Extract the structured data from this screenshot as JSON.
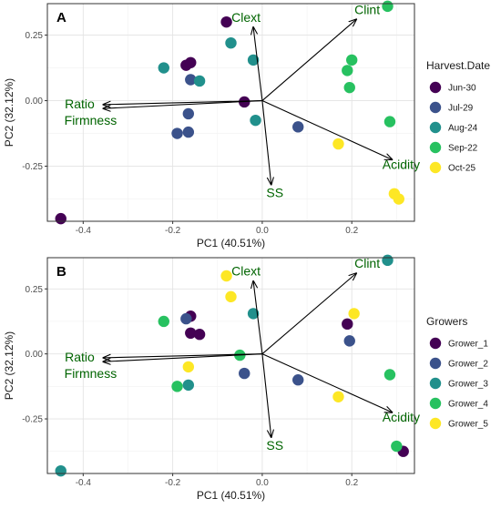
{
  "chart_data": [
    {
      "type": "scatter",
      "panel_label": "A",
      "xlabel": "PC1 (40.51%)",
      "ylabel": "PC2 (32.12%)",
      "xlim": [
        -0.48,
        0.34
      ],
      "ylim": [
        -0.46,
        0.37
      ],
      "x_ticks": [
        -0.4,
        -0.2,
        0.0,
        0.2
      ],
      "y_ticks": [
        0.25,
        0.0,
        -0.25
      ],
      "x_tick_labels": [
        "-0.4",
        "-0.2",
        "0.0",
        "0.2"
      ],
      "y_tick_labels": [
        "0.25",
        "0.00",
        "-0.25"
      ],
      "grid": true,
      "legend": {
        "title": "Harvest.Date",
        "position": "right"
      },
      "loadings": [
        {
          "label": "Clint",
          "x": 0.21,
          "y": 0.31
        },
        {
          "label": "Clext",
          "x": -0.02,
          "y": 0.28
        },
        {
          "label": "Ratio",
          "x": -0.355,
          "y": -0.015
        },
        {
          "label": "Firmness",
          "x": -0.355,
          "y": -0.03
        },
        {
          "label": "SS",
          "x": 0.02,
          "y": -0.32
        },
        {
          "label": "Acidity",
          "x": 0.29,
          "y": -0.225
        }
      ],
      "series": [
        {
          "name": "Jun-30",
          "color": "#440154",
          "points": [
            [
              -0.45,
              -0.45
            ],
            [
              -0.17,
              0.135
            ],
            [
              -0.16,
              0.145
            ],
            [
              -0.04,
              -0.005
            ],
            [
              -0.08,
              0.3
            ]
          ]
        },
        {
          "name": "Jul-29",
          "color": "#3B528B",
          "points": [
            [
              -0.16,
              0.08
            ],
            [
              -0.165,
              -0.05
            ],
            [
              -0.19,
              -0.125
            ],
            [
              -0.165,
              -0.12
            ],
            [
              0.08,
              -0.1
            ]
          ]
        },
        {
          "name": "Aug-24",
          "color": "#21908C",
          "points": [
            [
              -0.22,
              0.125
            ],
            [
              -0.14,
              0.075
            ],
            [
              -0.07,
              0.22
            ],
            [
              -0.02,
              0.155
            ],
            [
              -0.015,
              -0.075
            ]
          ]
        },
        {
          "name": "Sep-22",
          "color": "#27C160",
          "points": [
            [
              0.28,
              0.36
            ],
            [
              0.2,
              0.155
            ],
            [
              0.19,
              0.115
            ],
            [
              0.195,
              0.05
            ],
            [
              0.285,
              -0.08
            ]
          ]
        },
        {
          "name": "Oct-25",
          "color": "#FDE725",
          "points": [
            [
              0.17,
              -0.165
            ],
            [
              0.295,
              -0.355
            ],
            [
              0.305,
              -0.375
            ]
          ]
        }
      ]
    },
    {
      "type": "scatter",
      "panel_label": "B",
      "xlabel": "PC1 (40.51%)",
      "ylabel": "PC2 (32.12%)",
      "xlim": [
        -0.48,
        0.34
      ],
      "ylim": [
        -0.46,
        0.37
      ],
      "x_ticks": [
        -0.4,
        -0.2,
        0.0,
        0.2
      ],
      "y_ticks": [
        0.25,
        0.0,
        -0.25
      ],
      "x_tick_labels": [
        "-0.4",
        "-0.2",
        "0.0",
        "0.2"
      ],
      "y_tick_labels": [
        "0.25",
        "0.00",
        "-0.25"
      ],
      "grid": true,
      "legend": {
        "title": "Growers",
        "position": "right"
      },
      "loadings": [
        {
          "label": "Clint",
          "x": 0.21,
          "y": 0.31
        },
        {
          "label": "Clext",
          "x": -0.02,
          "y": 0.28
        },
        {
          "label": "Ratio",
          "x": -0.355,
          "y": -0.015
        },
        {
          "label": "Firmness",
          "x": -0.355,
          "y": -0.03
        },
        {
          "label": "SS",
          "x": 0.02,
          "y": -0.32
        },
        {
          "label": "Acidity",
          "x": 0.29,
          "y": -0.225
        }
      ],
      "series": [
        {
          "name": "Grower_1",
          "color": "#440154",
          "points": [
            [
              -0.16,
              0.145
            ],
            [
              -0.16,
              0.08
            ],
            [
              -0.14,
              0.075
            ],
            [
              0.19,
              0.115
            ],
            [
              0.315,
              -0.375
            ]
          ]
        },
        {
          "name": "Grower_2",
          "color": "#3B528B",
          "points": [
            [
              -0.17,
              0.135
            ],
            [
              -0.04,
              -0.075
            ],
            [
              0.08,
              -0.1
            ],
            [
              0.195,
              0.05
            ]
          ]
        },
        {
          "name": "Grower_3",
          "color": "#21908C",
          "points": [
            [
              -0.45,
              -0.45
            ],
            [
              -0.02,
              0.155
            ],
            [
              -0.165,
              -0.12
            ],
            [
              0.28,
              0.36
            ]
          ]
        },
        {
          "name": "Grower_4",
          "color": "#27C160",
          "points": [
            [
              -0.22,
              0.125
            ],
            [
              -0.19,
              -0.125
            ],
            [
              -0.05,
              -0.005
            ],
            [
              0.285,
              -0.08
            ],
            [
              0.3,
              -0.355
            ]
          ]
        },
        {
          "name": "Grower_5",
          "color": "#FDE725",
          "points": [
            [
              -0.08,
              0.3
            ],
            [
              -0.07,
              0.22
            ],
            [
              -0.165,
              -0.05
            ],
            [
              0.205,
              0.155
            ],
            [
              0.17,
              -0.165
            ]
          ]
        }
      ]
    }
  ]
}
